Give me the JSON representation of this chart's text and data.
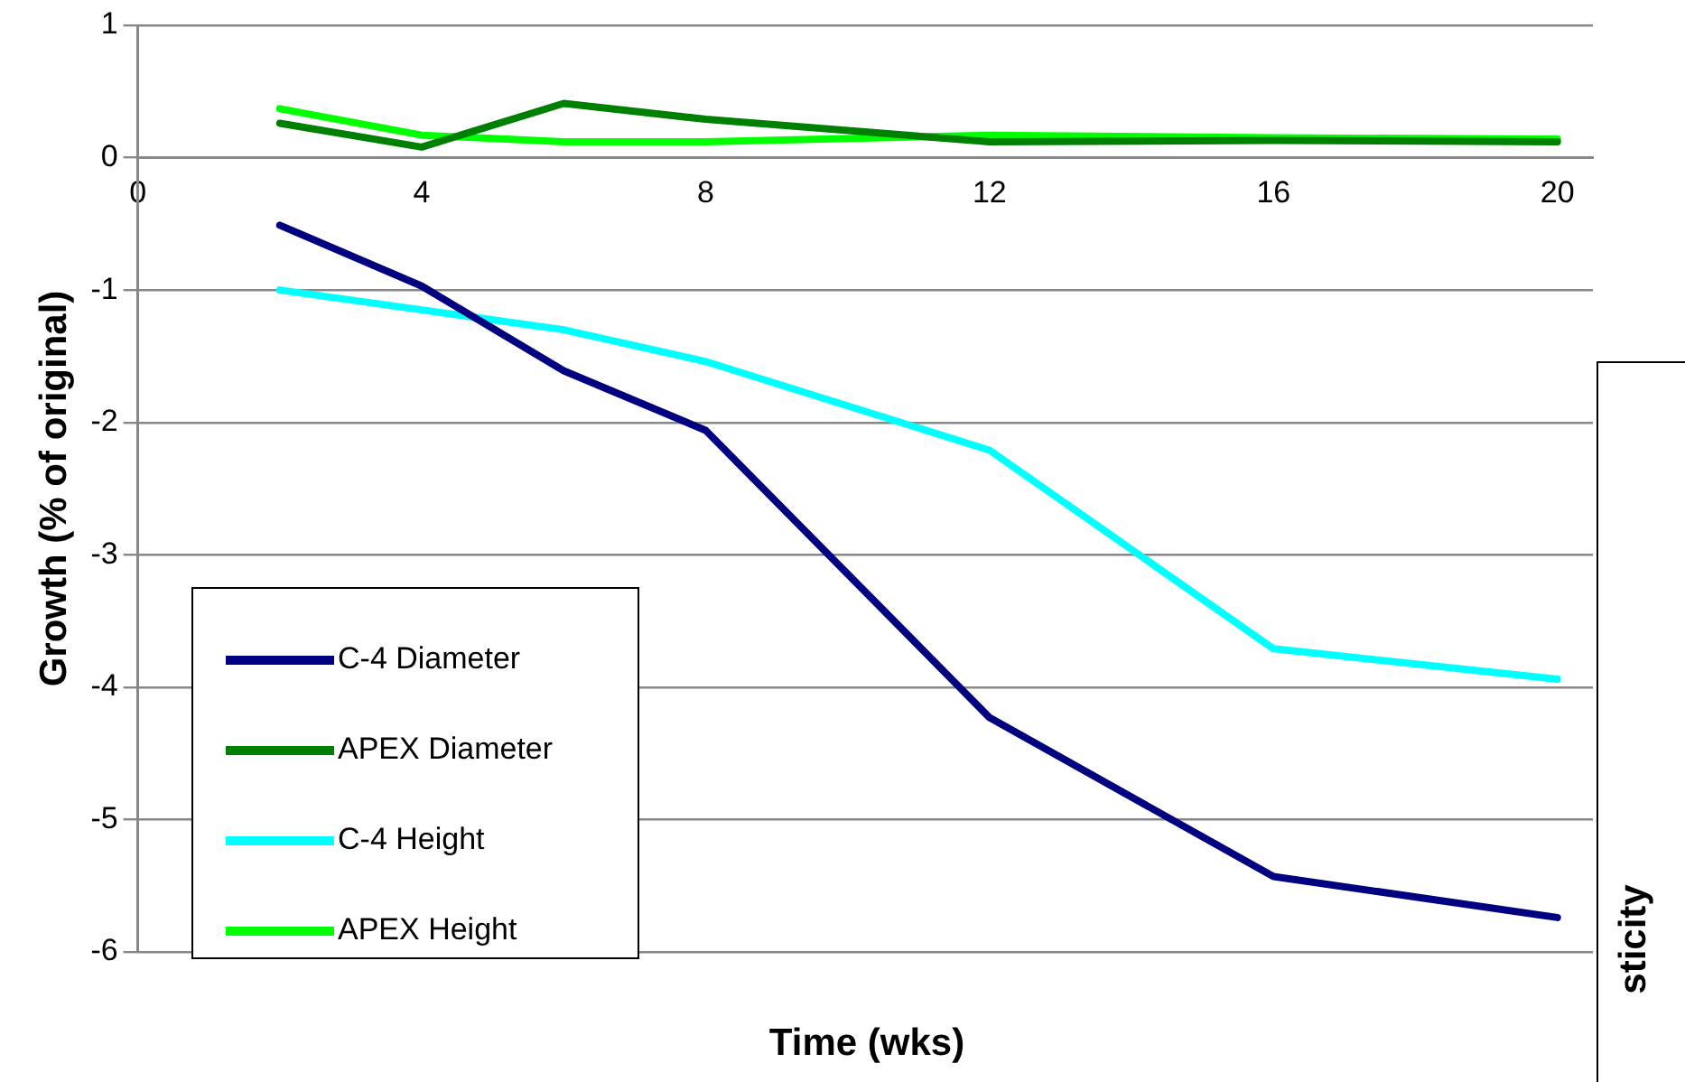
{
  "chart_data": {
    "type": "line",
    "xlabel": "Time (wks)",
    "ylabel": "Growth (% of original)",
    "x": [
      2,
      4,
      6,
      8,
      12,
      16,
      20
    ],
    "series": [
      {
        "name": "C-4 Diameter",
        "color": "#000080",
        "values": [
          -0.51,
          -0.97,
          -1.61,
          -2.06,
          -4.23,
          -5.43,
          -5.74
        ]
      },
      {
        "name": "APEX Diameter",
        "color": "#008000",
        "values": [
          0.26,
          0.08,
          0.41,
          0.29,
          0.12,
          0.13,
          0.12
        ]
      },
      {
        "name": "C-4 Height",
        "color": "#00ffff",
        "values": [
          -1.0,
          -1.15,
          -1.3,
          -1.54,
          -2.21,
          -3.71,
          -3.94
        ]
      },
      {
        "name": "APEX Height",
        "color": "#00ff00",
        "values": [
          0.37,
          0.17,
          0.12,
          0.12,
          0.17,
          0.15,
          0.14
        ]
      }
    ],
    "xlim": [
      0,
      20.5
    ],
    "xticks": [
      0,
      4,
      8,
      12,
      16,
      20
    ],
    "ylim": [
      -6,
      1
    ],
    "yticks": [
      -6,
      -5,
      -4,
      -3,
      -2,
      -1,
      0,
      1
    ],
    "grid": "y",
    "legend": "bottom left",
    "marker": "none",
    "line_style": "solid",
    "annotations": [
      "sticity"
    ]
  }
}
